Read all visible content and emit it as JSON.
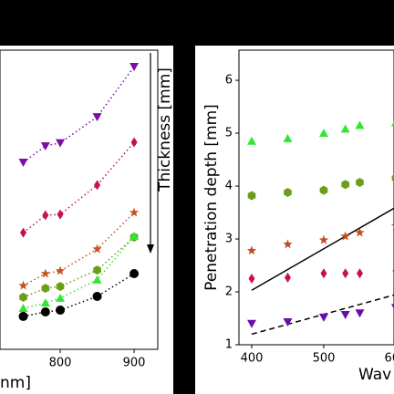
{
  "chart_data": [
    {
      "type": "line",
      "xlabel": "nm]",
      "annotation": "Thickness [mm]",
      "x": [
        750,
        780,
        800,
        850,
        900
      ],
      "xlim": [
        718.5,
        932
      ],
      "xticks": [
        800,
        900
      ],
      "ylim": [
        0,
        1
      ],
      "series": [
        {
          "color": "#7a0fa8",
          "marker": "v",
          "values": [
            0.625,
            0.68,
            0.69,
            0.777,
            0.945
          ]
        },
        {
          "color": "#c4124b",
          "marker": "D",
          "values": [
            0.39,
            0.448,
            0.451,
            0.549,
            0.692
          ]
        },
        {
          "color": "#c8501e",
          "marker": "*",
          "values": [
            0.213,
            0.253,
            0.262,
            0.335,
            0.457
          ]
        },
        {
          "color": "#6e9e14",
          "marker": "h",
          "values": [
            0.174,
            0.204,
            0.21,
            0.265,
            0.375
          ]
        },
        {
          "color": "#33e633",
          "marker": "^",
          "values": [
            0.137,
            0.155,
            0.171,
            0.232,
            0.378
          ]
        },
        {
          "color": "#000000",
          "marker": "o",
          "values": [
            0.11,
            0.125,
            0.131,
            0.177,
            0.253
          ]
        }
      ]
    },
    {
      "type": "scatter",
      "xlabel": "Wav",
      "ylabel": "Penetration depth [mm]",
      "x": [
        400,
        450,
        500,
        530,
        550,
        600
      ],
      "xlim": [
        382.3,
        597.5
      ],
      "xticks": [
        400,
        500,
        600
      ],
      "ylim": [
        1,
        6.57
      ],
      "yticks": [
        1,
        2,
        3,
        4,
        5,
        6
      ],
      "series": [
        {
          "color": "#2ee82e",
          "marker": "^",
          "values": [
            4.85,
            4.9,
            5.0,
            5.08,
            5.15,
            5.2
          ]
        },
        {
          "color": "#6b9e1a",
          "marker": "h",
          "values": [
            3.82,
            3.88,
            3.92,
            4.03,
            4.07,
            4.15
          ]
        },
        {
          "color": "#c24a1c",
          "marker": "*",
          "values": [
            2.78,
            2.9,
            2.98,
            3.05,
            3.12,
            3.25
          ]
        },
        {
          "color": "#c8104a",
          "marker": "D",
          "values": [
            2.25,
            2.27,
            2.35,
            2.35,
            2.35,
            2.4
          ]
        },
        {
          "color": "#6a0ca8",
          "marker": "v",
          "values": [
            1.4,
            1.43,
            1.52,
            1.57,
            1.6,
            1.7
          ]
        }
      ],
      "lines": [
        {
          "style": "solid",
          "x": [
            400,
            600
          ],
          "values": [
            2.03,
            3.6
          ]
        },
        {
          "style": "dashed",
          "x": [
            400,
            600
          ],
          "values": [
            1.2,
            1.95
          ]
        }
      ]
    }
  ]
}
